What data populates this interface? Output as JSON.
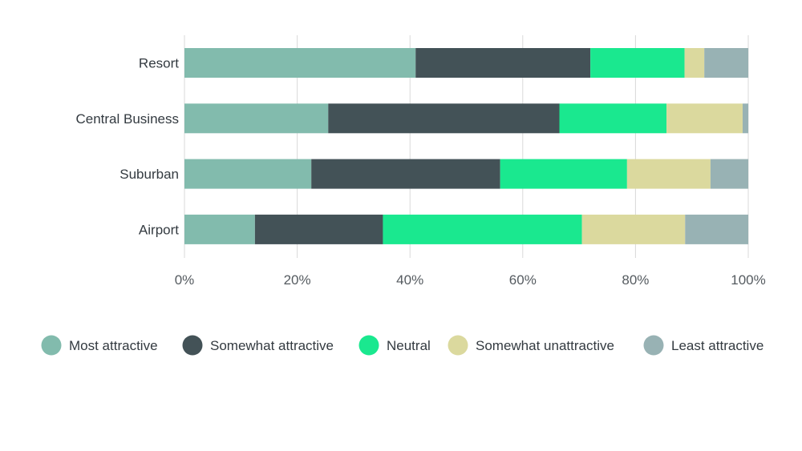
{
  "chart_data": {
    "type": "bar",
    "orientation": "horizontal",
    "stacked": true,
    "title": "",
    "xlabel": "",
    "ylabel": "",
    "xlim": [
      0,
      100
    ],
    "x_ticks": [
      0,
      20,
      40,
      60,
      80,
      100
    ],
    "x_tick_labels": [
      "0%",
      "20%",
      "40%",
      "60%",
      "80%",
      "100%"
    ],
    "grid": true,
    "legend_position": "bottom",
    "categories": [
      "Resort",
      "Central Business",
      "Suburban",
      "Airport"
    ],
    "series": [
      {
        "name": "Most attractive",
        "color": "#82bbad",
        "values": [
          41,
          25.5,
          22.5,
          12.5
        ]
      },
      {
        "name": "Somewhat attractive",
        "color": "#435257",
        "values": [
          31,
          41,
          33.5,
          22.7
        ]
      },
      {
        "name": "Neutral",
        "color": "#1ae88f",
        "values": [
          16.7,
          19,
          22.5,
          35.3
        ]
      },
      {
        "name": "Somewhat unattractive",
        "color": "#dbd99e",
        "values": [
          3.5,
          13.5,
          14.8,
          18.3
        ]
      },
      {
        "name": "Least attractive",
        "color": "#98b2b4",
        "values": [
          7.8,
          1,
          6.7,
          11.2
        ]
      }
    ]
  }
}
